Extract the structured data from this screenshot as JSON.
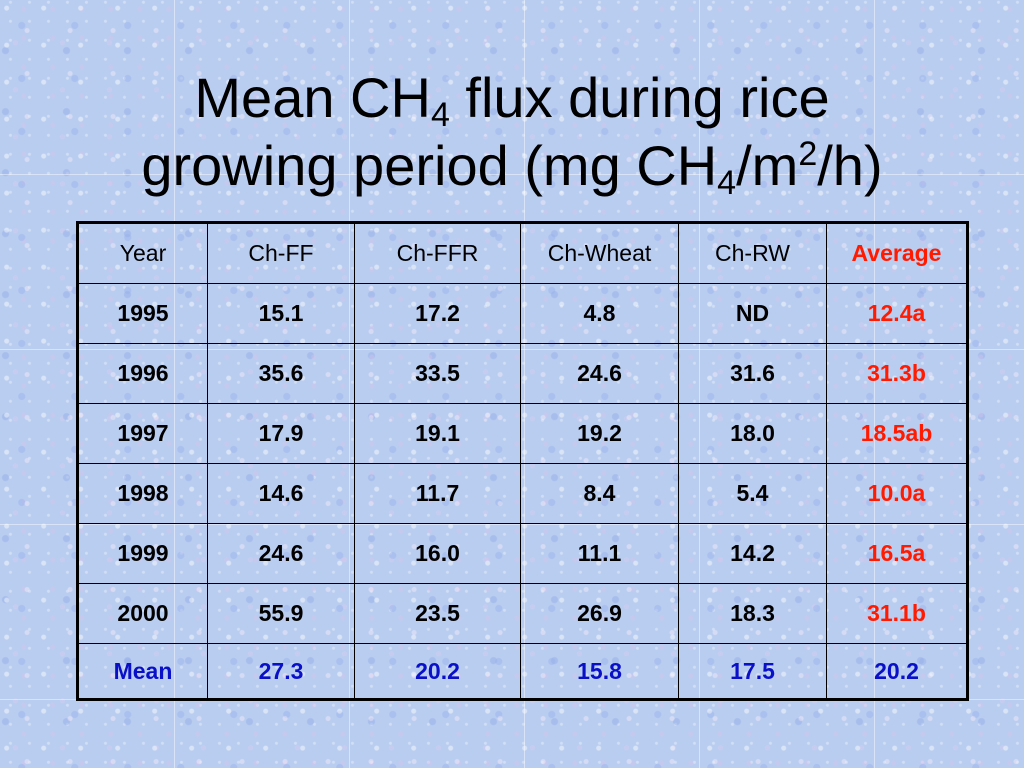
{
  "title": {
    "line1": "Mean CH",
    "line1_sub": "4",
    "line1_rest": " flux during rice",
    "line2": "growing period (mg CH",
    "line2_sub": "4",
    "line2_mid": "/m",
    "line2_sup": "2",
    "line2_rest": "/h)"
  },
  "colors": {
    "background": "#b9cdf0",
    "average_text": "#ff1a00",
    "mean_text": "#0a10c8"
  },
  "table": {
    "columns": [
      "Year",
      "Ch-FF",
      "Ch-FFR",
      "Ch-Wheat",
      "Ch-RW",
      "Average"
    ],
    "rows": [
      [
        "1995",
        "15.1",
        "17.2",
        "4.8",
        "ND",
        "12.4a"
      ],
      [
        "1996",
        "35.6",
        "33.5",
        "24.6",
        "31.6",
        "31.3b"
      ],
      [
        "1997",
        "17.9",
        "19.1",
        "19.2",
        "18.0",
        "18.5ab"
      ],
      [
        "1998",
        "14.6",
        "11.7",
        "8.4",
        "5.4",
        "10.0a"
      ],
      [
        "1999",
        "24.6",
        "16.0",
        "11.1",
        "14.2",
        "16.5a"
      ],
      [
        "2000",
        "55.9",
        "23.5",
        "26.9",
        "18.3",
        "31.1b"
      ]
    ],
    "mean_row": [
      "Mean",
      "27.3",
      "20.2",
      "15.8",
      "17.5",
      "20.2"
    ]
  }
}
